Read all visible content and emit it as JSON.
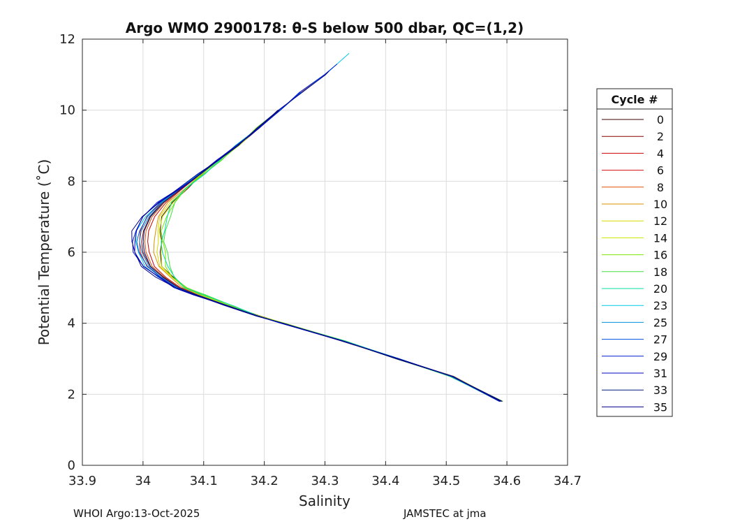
{
  "chart_data": {
    "type": "line",
    "title": "Argo WMO 2900178: θ-S below 500 dbar,  QC=(1,2)",
    "xlabel": "Salinity",
    "ylabel": "Potential Temperature (˚C)",
    "xlim": [
      33.9,
      34.7
    ],
    "ylim": [
      0,
      12
    ],
    "xticks": [
      "33.9",
      "34",
      "34.1",
      "34.2",
      "34.3",
      "34.4",
      "34.5",
      "34.6",
      "34.7"
    ],
    "yticks": [
      "0",
      "2",
      "4",
      "6",
      "8",
      "10",
      "12"
    ],
    "grid": true,
    "legend": {
      "title": "Cycle #",
      "placement": "outside-right",
      "entries": [
        "0",
        "2",
        "4",
        "6",
        "8",
        "10",
        "12",
        "14",
        "16",
        "18",
        "20",
        "23",
        "25",
        "27",
        "29",
        "31",
        "33",
        "35"
      ]
    },
    "colors": [
      "#3d0000",
      "#8a0000",
      "#cc0000",
      "#d80c0c",
      "#e05000",
      "#d99000",
      "#d8d800",
      "#c8e800",
      "#7be800",
      "#40e040",
      "#00e0a0",
      "#00c8e8",
      "#0090d8",
      "#0050e0",
      "#0018d8",
      "#0000c0",
      "#001a7a",
      "#00008b"
    ],
    "base_profile": {
      "theta": [
        1.8,
        2.5,
        3.0,
        3.5,
        4.0,
        4.2,
        4.5,
        4.8,
        5.0,
        5.3,
        5.6,
        6.0,
        6.3,
        6.6,
        7.0,
        7.4,
        7.8,
        8.2,
        8.6,
        9.0,
        9.5,
        10.0,
        10.5,
        11.0
      ],
      "salinity": [
        34.59,
        34.51,
        34.42,
        34.33,
        34.23,
        34.19,
        34.14,
        34.09,
        34.06,
        34.035,
        34.015,
        34.005,
        34.003,
        34.005,
        34.015,
        34.035,
        34.065,
        34.095,
        34.125,
        34.155,
        34.19,
        34.225,
        34.26,
        34.3
      ]
    },
    "series": [
      {
        "name": "0",
        "s_offset": 0.025,
        "theta_max": 10.0
      },
      {
        "name": "2",
        "s_offset": -0.005,
        "theta_max": 10.5
      },
      {
        "name": "4",
        "s_offset": 0.005,
        "theta_max": 11.0
      },
      {
        "name": "6",
        "s_offset": -0.01,
        "theta_max": 10.2
      },
      {
        "name": "8",
        "s_offset": 0.0,
        "theta_max": 9.8
      },
      {
        "name": "10",
        "s_offset": 0.015,
        "theta_max": 9.6
      },
      {
        "name": "12",
        "s_offset": 0.02,
        "theta_max": 9.4
      },
      {
        "name": "14",
        "s_offset": 0.025,
        "theta_max": 9.5
      },
      {
        "name": "16",
        "s_offset": 0.03,
        "theta_max": 10.1
      },
      {
        "name": "18",
        "s_offset": 0.035,
        "theta_max": 9.3
      },
      {
        "name": "20",
        "s_offset": 0.03,
        "theta_max": 9.7
      },
      {
        "name": "23",
        "s_offset": -0.015,
        "theta_max": 11.6
      },
      {
        "name": "25",
        "s_offset": -0.008,
        "theta_max": 10.6
      },
      {
        "name": "27",
        "s_offset": -0.012,
        "theta_max": 10.8
      },
      {
        "name": "29",
        "s_offset": -0.02,
        "theta_max": 11.3
      },
      {
        "name": "31",
        "s_offset": -0.018,
        "theta_max": 10.4
      },
      {
        "name": "33",
        "s_offset": -0.003,
        "theta_max": 10.2
      },
      {
        "name": "35",
        "s_offset": -0.022,
        "theta_max": 11.1
      }
    ]
  },
  "footer": {
    "left": "WHOI Argo:13-Oct-2025",
    "right": "JAMSTEC at jma"
  }
}
